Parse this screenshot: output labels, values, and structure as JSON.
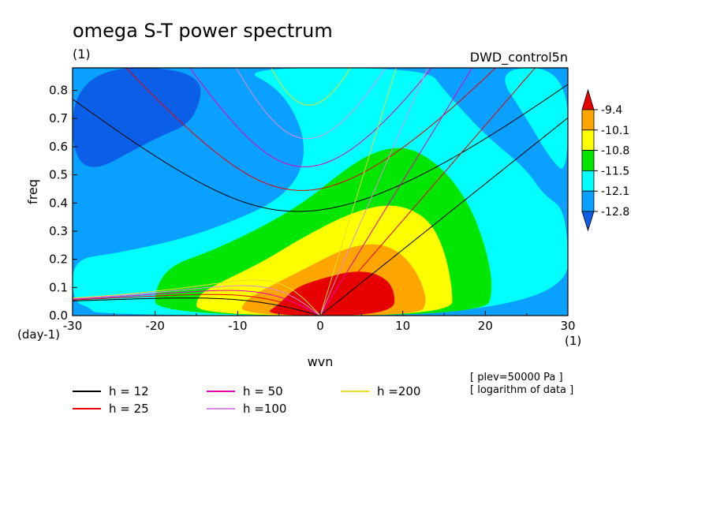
{
  "chart_data": {
    "type": "heatmap",
    "title": "omega S-T power spectrum",
    "unit_label": "(1)",
    "run_label": "DWD_control5n",
    "xlabel": "wvn",
    "ylabel": "freq",
    "x_unit": "(1)",
    "y_unit": "(day-1)",
    "xlim": [
      -30,
      30
    ],
    "ylim": [
      0.0,
      0.88
    ],
    "x_ticks": [
      "-30",
      "-20",
      "-10",
      "0",
      "10",
      "20",
      "30"
    ],
    "x_tick_values": [
      -30,
      -20,
      -10,
      0,
      10,
      20,
      30
    ],
    "y_ticks": [
      "0.0",
      "0.1",
      "0.2",
      "0.3",
      "0.4",
      "0.5",
      "0.6",
      "0.7",
      "0.8"
    ],
    "y_tick_values": [
      0.0,
      0.1,
      0.2,
      0.3,
      0.4,
      0.5,
      0.6,
      0.7,
      0.8
    ],
    "colorbar": {
      "levels": [
        "-9.4",
        "-10.1",
        "-10.8",
        "-11.5",
        "-12.1",
        "-12.8"
      ],
      "colors": [
        "#e60000",
        "#ffa500",
        "#ffff00",
        "#00e600",
        "#00ffff",
        "#0aa0ff",
        "#0a5fe6"
      ],
      "top_arrow_color": "#e60000",
      "bottom_arrow_color": "#0a5fe6"
    },
    "series": [
      {
        "name": "h = 12",
        "equivalent_depth": 12,
        "color": "#000000"
      },
      {
        "name": "h = 25",
        "equivalent_depth": 25,
        "color": "#e60000"
      },
      {
        "name": "h = 50",
        "equivalent_depth": 50,
        "color": "#e600b4"
      },
      {
        "name": "h =100",
        "equivalent_depth": 100,
        "color": "#dc8cdc"
      },
      {
        "name": "h =200",
        "equivalent_depth": 200,
        "color": "#e6dc32"
      }
    ],
    "notes": [
      "[ plev=50000 Pa ]",
      "[ logarithm of data ]"
    ]
  }
}
